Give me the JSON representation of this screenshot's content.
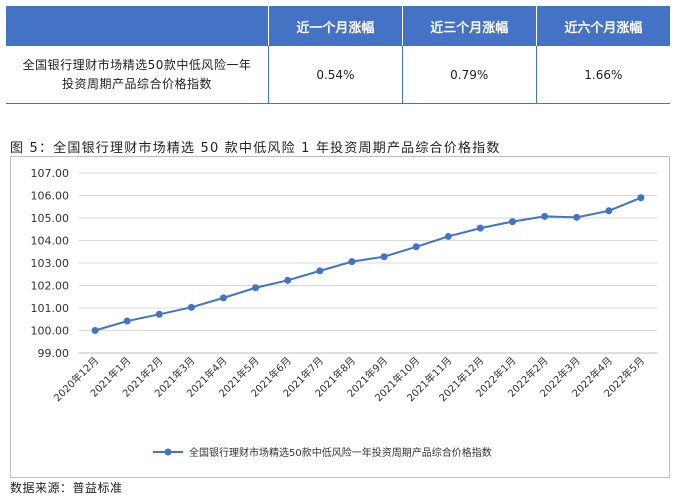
{
  "table": {
    "headers": [
      "",
      "近一个月涨幅",
      "近三个月涨幅",
      "近六个月涨幅"
    ],
    "row": {
      "name_line1": "全国银行理财市场精选50款中低风险一年",
      "name_line2": "投资周期产品综合价格指数",
      "values": [
        "0.54%",
        "0.79%",
        "1.66%"
      ]
    }
  },
  "figure_title": "图 5：全国银行理财市场精选 50 款中低风险 1 年投资周期产品综合价格指数",
  "source": "数据来源：普益标准",
  "colors": {
    "header_bg": "#4472c4",
    "line": "#4472c4",
    "grid": "#d9d9d9"
  },
  "chart_data": {
    "type": "line",
    "categories": [
      "2020年12月",
      "2021年1月",
      "2021年2月",
      "2021年3月",
      "2021年4月",
      "2021年5月",
      "2021年6月",
      "2021年7月",
      "2021年8月",
      "2021年9月",
      "2021年10月",
      "2021年11月",
      "2021年12月",
      "2022年1月",
      "2022年2月",
      "2022年3月",
      "2022年4月",
      "2022年5月"
    ],
    "series": [
      {
        "name": "全国银行理财市场精选50款中低风险一年投资周期产品综合价格指数",
        "values": [
          100.0,
          100.42,
          100.72,
          101.03,
          101.45,
          101.9,
          102.23,
          102.65,
          103.06,
          103.28,
          103.72,
          104.18,
          104.55,
          104.84,
          105.07,
          105.03,
          105.32,
          105.9
        ]
      }
    ],
    "yticks": [
      "99.00",
      "100.00",
      "101.00",
      "102.00",
      "103.00",
      "104.00",
      "105.00",
      "106.00",
      "107.00"
    ],
    "ylim": [
      99,
      107
    ],
    "grid": true,
    "legend_position": "bottom"
  }
}
